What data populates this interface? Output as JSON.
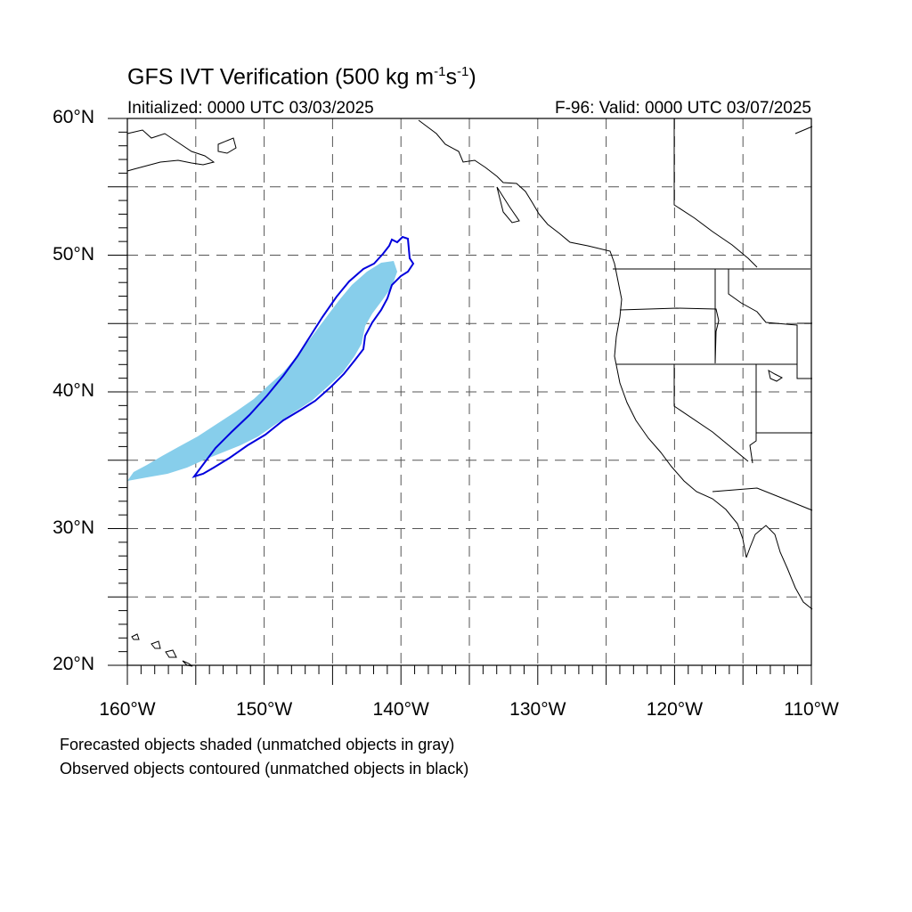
{
  "title": {
    "prefix": "GFS IVT Verification (500 kg m",
    "exp1": "-1",
    "middle": "s",
    "exp2": "-1",
    "suffix": ")"
  },
  "initialized": "Initialized: 0000 UTC 03/03/2025",
  "valid": "F-96: Valid: 0000 UTC 03/07/2025",
  "lat_labels": [
    {
      "deg": 60,
      "text": "60°N"
    },
    {
      "deg": 50,
      "text": "50°N"
    },
    {
      "deg": 40,
      "text": "40°N"
    },
    {
      "deg": 30,
      "text": "30°N"
    },
    {
      "deg": 20,
      "text": "20°N"
    }
  ],
  "lon_labels": [
    {
      "deg": -160,
      "text": "160°W"
    },
    {
      "deg": -150,
      "text": "150°W"
    },
    {
      "deg": -140,
      "text": "140°W"
    },
    {
      "deg": -130,
      "text": "130°W"
    },
    {
      "deg": -120,
      "text": "120°W"
    },
    {
      "deg": -110,
      "text": "110°W"
    }
  ],
  "notes": [
    "Forecasted objects shaded (unmatched objects in gray)",
    "Observed objects contoured (unmatched objects in black)"
  ],
  "colors": {
    "forecast_fill": "#87ceeb",
    "observed_contour": "#0000dd",
    "coast": "#000000",
    "grid": "#555555"
  },
  "map": {
    "lon_range": [
      -160,
      -110
    ],
    "lat_range": [
      20,
      60
    ],
    "grid_step_deg": 5
  }
}
